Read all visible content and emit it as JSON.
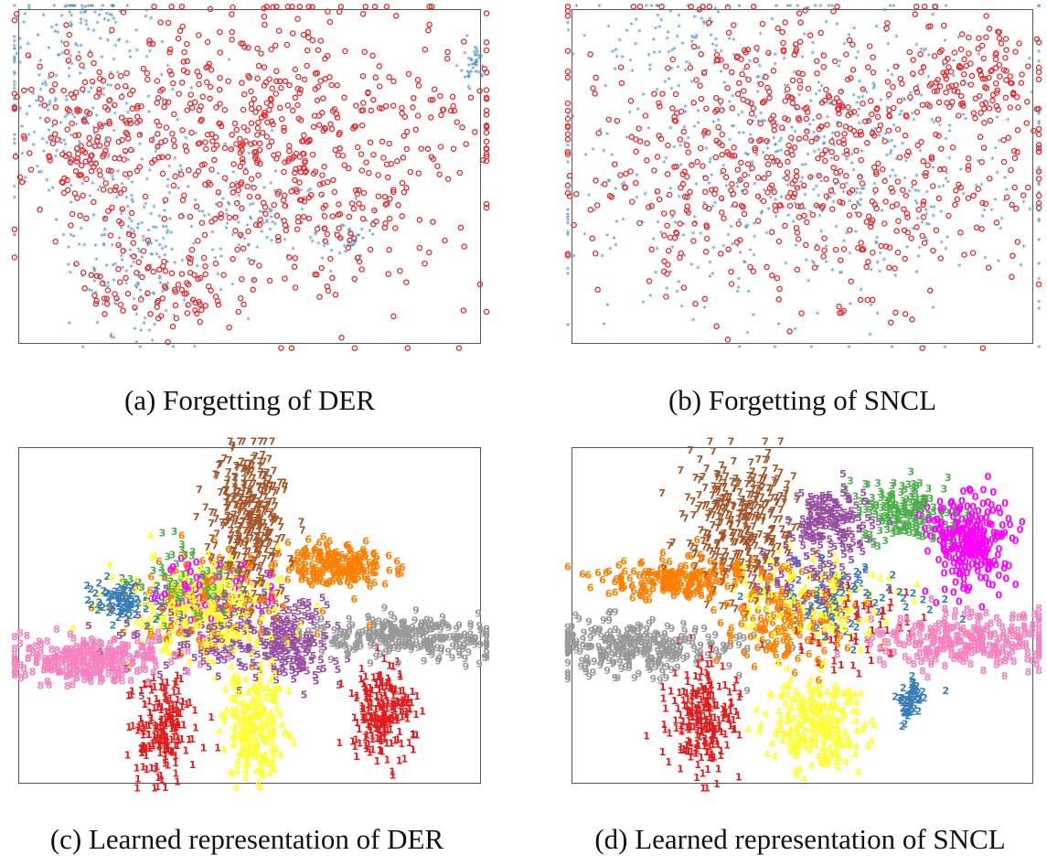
{
  "colors": {
    "old_class": "#e8292d",
    "new_class": "#4a8cc4",
    "frame": "#555555",
    "digit_palette": {
      "0": "#ff00ff",
      "1": "#e41a1c",
      "2": "#377eb8",
      "3": "#4daf4a",
      "4": "#984ea3",
      "5": "#984ea3",
      "6": "#ff7f00",
      "7": "#a65628",
      "8": "#f781bf",
      "9": "#999999",
      "y": "#ffff33"
    }
  },
  "panels": [
    {
      "id": "a",
      "caption": "(a) Forgetting of DER",
      "chart_data": {
        "type": "scatter",
        "title": "",
        "xlabel": "",
        "ylabel": "",
        "grid": false,
        "legend": "none",
        "xlim": [
          0,
          100
        ],
        "ylim": [
          0,
          100
        ],
        "series": [
          {
            "marker": "star",
            "color": "#4a8cc4",
            "clusters": [
              {
                "cx": 12,
                "cy": 72,
                "sx": 10,
                "sy": 18,
                "n": 260
              },
              {
                "cx": 24,
                "cy": 25,
                "sx": 7,
                "sy": 12,
                "n": 160
              },
              {
                "cx": 50,
                "cy": 38,
                "sx": 9,
                "sy": 10,
                "n": 110
              },
              {
                "cx": 71,
                "cy": 31,
                "sx": 3,
                "sy": 4,
                "n": 45
              },
              {
                "cx": 98,
                "cy": 84,
                "sx": 1.2,
                "sy": 3,
                "n": 40
              },
              {
                "cx": 14,
                "cy": 98,
                "sx": 6,
                "sy": 2,
                "n": 30
              }
            ]
          },
          {
            "marker": "circle",
            "color": "#e8292d",
            "clusters": [
              {
                "cx": 55,
                "cy": 62,
                "sx": 24,
                "sy": 22,
                "n": 700
              },
              {
                "cx": 14,
                "cy": 60,
                "sx": 7,
                "sy": 14,
                "n": 120
              },
              {
                "cx": 33,
                "cy": 14,
                "sx": 9,
                "sy": 6,
                "n": 80
              }
            ]
          }
        ]
      }
    },
    {
      "id": "b",
      "caption": "(b) Forgetting of SNCL",
      "chart_data": {
        "type": "scatter",
        "title": "",
        "xlabel": "",
        "ylabel": "",
        "grid": false,
        "legend": "none",
        "xlim": [
          0,
          100
        ],
        "ylim": [
          0,
          100
        ],
        "series": [
          {
            "marker": "star",
            "color": "#4a8cc4",
            "clusters": [
              {
                "cx": 50,
                "cy": 55,
                "sx": 26,
                "sy": 22,
                "n": 650
              },
              {
                "cx": 20,
                "cy": 90,
                "sx": 8,
                "sy": 6,
                "n": 60
              }
            ]
          },
          {
            "marker": "circle",
            "color": "#e8292d",
            "clusters": [
              {
                "cx": 50,
                "cy": 57,
                "sx": 27,
                "sy": 22,
                "n": 700
              },
              {
                "cx": 88,
                "cy": 80,
                "sx": 6,
                "sy": 6,
                "n": 90
              }
            ]
          }
        ]
      }
    },
    {
      "id": "c",
      "caption": "(c) Learned representation of DER",
      "chart_data": {
        "type": "scatter",
        "title": "",
        "xlabel": "",
        "ylabel": "",
        "grid": false,
        "legend": "none",
        "xlim": [
          0,
          100
        ],
        "ylim": [
          0,
          100
        ],
        "marker": "digit-label",
        "clusters": [
          {
            "label": "7",
            "color": "#a65628",
            "cx": 50,
            "cy": 80,
            "sx": 4,
            "sy": 12,
            "n": 320
          },
          {
            "label": "6",
            "color": "#ff7f00",
            "cx": 69,
            "cy": 65,
            "sx": 6,
            "sy": 3.5,
            "n": 200
          },
          {
            "label": "9",
            "color": "#999999",
            "cx": 83,
            "cy": 44,
            "sx": 10,
            "sy": 3,
            "n": 280
          },
          {
            "label": "8",
            "color": "#f781bf",
            "cx": 15,
            "cy": 37,
            "sx": 9,
            "sy": 3.5,
            "n": 300
          },
          {
            "label": "1",
            "color": "#e41a1c",
            "cx": 79,
            "cy": 22,
            "sx": 3.5,
            "sy": 7,
            "n": 200
          },
          {
            "label": "1",
            "color": "#e41a1c",
            "cx": 31,
            "cy": 17,
            "sx": 3.5,
            "sy": 8,
            "n": 180
          },
          {
            "label": "4",
            "color": "#ffff33",
            "cx": 51,
            "cy": 18,
            "sx": 3.5,
            "sy": 9,
            "n": 220
          },
          {
            "label": "5",
            "color": "#984ea3",
            "cx": 59,
            "cy": 42,
            "sx": 4,
            "sy": 6,
            "n": 140
          },
          {
            "label": "2",
            "color": "#377eb8",
            "cx": 23,
            "cy": 55,
            "sx": 4,
            "sy": 3,
            "n": 90
          },
          {
            "label": "3",
            "color": "#4daf4a",
            "cx": 37,
            "cy": 60,
            "sx": 6,
            "sy": 6,
            "n": 90
          },
          {
            "label": "4",
            "color": "#ffff33",
            "cx": 40,
            "cy": 52,
            "sx": 9,
            "sy": 7,
            "n": 260
          },
          {
            "label": "5",
            "color": "#984ea3",
            "cx": 44,
            "cy": 45,
            "sx": 10,
            "sy": 8,
            "n": 160
          },
          {
            "label": "6",
            "color": "#ff7f00",
            "cx": 42,
            "cy": 55,
            "sx": 9,
            "sy": 8,
            "n": 110
          },
          {
            "label": "0",
            "color": "#ff00ff",
            "cx": 40,
            "cy": 58,
            "sx": 8,
            "sy": 6,
            "n": 50
          }
        ]
      }
    },
    {
      "id": "d",
      "caption": "(d) Learned representation of SNCL",
      "chart_data": {
        "type": "scatter",
        "title": "",
        "xlabel": "",
        "ylabel": "",
        "grid": false,
        "legend": "none",
        "xlim": [
          0,
          100
        ],
        "ylim": [
          0,
          100
        ],
        "marker": "digit-label",
        "clusters": [
          {
            "label": "7",
            "color": "#a65628",
            "cx": 36,
            "cy": 78,
            "sx": 6,
            "sy": 10,
            "n": 320
          },
          {
            "label": "5",
            "color": "#984ea3",
            "cx": 56,
            "cy": 79,
            "sx": 4,
            "sy": 5,
            "n": 150
          },
          {
            "label": "3",
            "color": "#4daf4a",
            "cx": 72,
            "cy": 81,
            "sx": 5,
            "sy": 5,
            "n": 170
          },
          {
            "label": "0",
            "color": "#ff00ff",
            "cx": 85,
            "cy": 72,
            "sx": 5,
            "sy": 7,
            "n": 260
          },
          {
            "label": "8",
            "color": "#f781bf",
            "cx": 86,
            "cy": 43,
            "sx": 11,
            "sy": 4,
            "n": 280
          },
          {
            "label": "6",
            "color": "#ff7f00",
            "cx": 23,
            "cy": 61,
            "sx": 8,
            "sy": 3,
            "n": 220
          },
          {
            "label": "9",
            "color": "#999999",
            "cx": 13,
            "cy": 41,
            "sx": 11,
            "sy": 4,
            "n": 300
          },
          {
            "label": "1",
            "color": "#e41a1c",
            "cx": 28,
            "cy": 20,
            "sx": 4,
            "sy": 8,
            "n": 220
          },
          {
            "label": "4",
            "color": "#ffff33",
            "cx": 53,
            "cy": 18,
            "sx": 5,
            "sy": 7,
            "n": 250
          },
          {
            "label": "2",
            "color": "#377eb8",
            "cx": 73,
            "cy": 25,
            "sx": 1.8,
            "sy": 2.5,
            "n": 55
          },
          {
            "label": "6",
            "color": "#ff7f00",
            "cx": 47,
            "cy": 48,
            "sx": 7,
            "sy": 7,
            "n": 140
          },
          {
            "label": "4",
            "color": "#ffff33",
            "cx": 52,
            "cy": 54,
            "sx": 8,
            "sy": 7,
            "n": 150
          },
          {
            "label": "2",
            "color": "#377eb8",
            "cx": 56,
            "cy": 55,
            "sx": 9,
            "sy": 6,
            "n": 80
          },
          {
            "label": "1",
            "color": "#e41a1c",
            "cx": 60,
            "cy": 48,
            "sx": 8,
            "sy": 6,
            "n": 60
          },
          {
            "label": "5",
            "color": "#984ea3",
            "cx": 52,
            "cy": 62,
            "sx": 6,
            "sy": 6,
            "n": 70
          }
        ]
      }
    }
  ]
}
